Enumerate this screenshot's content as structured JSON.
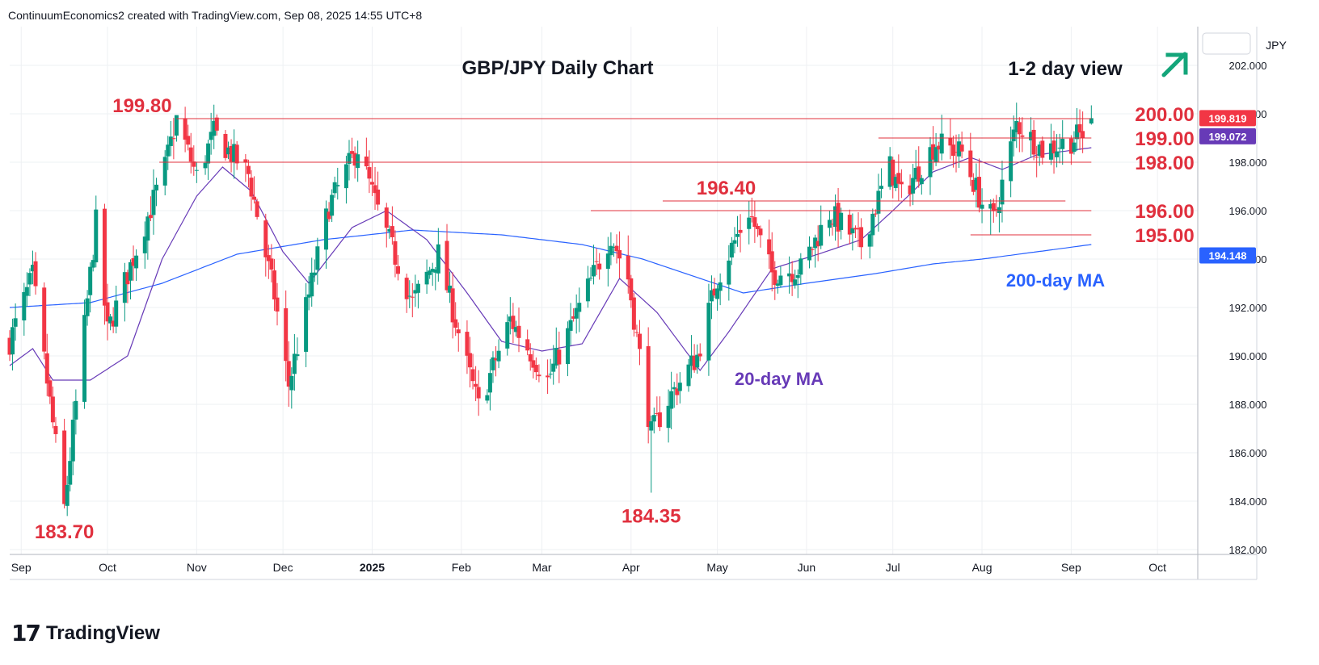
{
  "header": {
    "caption": "ContinuumEconomics2 created with TradingView.com, Sep 08, 2025 14:55 UTC+8"
  },
  "footer": {
    "brand": "TradingView"
  },
  "colors": {
    "up": "#089981",
    "down": "#f23645",
    "ma20": "#673ab7",
    "ma200": "#2962ff",
    "level": "#e0303e",
    "arrow": "#13a57a",
    "grid": "#eef0f3",
    "axis_text": "#131722"
  },
  "chart_data": {
    "type": "candlestick",
    "title": "GBP/JPY Daily Chart",
    "view_label": "1-2 day view",
    "view_direction": "up",
    "currency": "JPY",
    "y_range": [
      181.8,
      203.6
    ],
    "y_ticks": [
      182.0,
      184.0,
      186.0,
      188.0,
      190.0,
      192.0,
      194.0,
      196.0,
      198.0,
      200.0,
      202.0
    ],
    "y_tick_labels": [
      "182.000",
      "184.000",
      "186.000",
      "188.000",
      "190.000",
      "192.000",
      "194.000",
      "196.000",
      "198.000",
      "200.000",
      "202.000"
    ],
    "x_range": [
      "2024-08-28",
      "2025-10-15"
    ],
    "x_ticks": [
      {
        "date": "2024-09-01",
        "label": "Sep"
      },
      {
        "date": "2024-10-01",
        "label": "Oct"
      },
      {
        "date": "2024-11-01",
        "label": "Nov"
      },
      {
        "date": "2024-12-01",
        "label": "Dec"
      },
      {
        "date": "2025-01-01",
        "label": "2025"
      },
      {
        "date": "2025-02-01",
        "label": "Feb"
      },
      {
        "date": "2025-03-01",
        "label": "Mar"
      },
      {
        "date": "2025-04-01",
        "label": "Apr"
      },
      {
        "date": "2025-05-01",
        "label": "May"
      },
      {
        "date": "2025-06-01",
        "label": "Jun"
      },
      {
        "date": "2025-07-01",
        "label": "Jul"
      },
      {
        "date": "2025-08-01",
        "label": "Aug"
      },
      {
        "date": "2025-09-01",
        "label": "Sep"
      },
      {
        "date": "2025-10-01",
        "label": "Oct"
      }
    ],
    "price_anchors": [
      [
        "2024-08-28",
        190.6
      ],
      [
        "2024-09-05",
        193.3
      ],
      [
        "2024-09-16",
        183.7
      ],
      [
        "2024-09-27",
        195.5
      ],
      [
        "2024-10-01",
        191.0
      ],
      [
        "2024-10-21",
        197.8
      ],
      [
        "2024-10-25",
        199.8
      ],
      [
        "2024-11-01",
        197.4
      ],
      [
        "2024-11-07",
        199.2
      ],
      [
        "2024-11-19",
        197.5
      ],
      [
        "2024-11-28",
        192.5
      ],
      [
        "2024-12-03",
        188.8
      ],
      [
        "2024-12-17",
        196.2
      ],
      [
        "2024-12-27",
        198.6
      ],
      [
        "2025-01-03",
        196.0
      ],
      [
        "2025-01-15",
        192.2
      ],
      [
        "2025-01-24",
        194.2
      ],
      [
        "2025-02-03",
        189.6
      ],
      [
        "2025-02-07",
        187.9
      ],
      [
        "2025-02-18",
        191.5
      ],
      [
        "2025-03-03",
        189.0
      ],
      [
        "2025-03-10",
        190.9
      ],
      [
        "2025-03-25",
        195.0
      ],
      [
        "2025-03-31",
        193.2
      ],
      [
        "2025-04-08",
        186.8
      ],
      [
        "2025-04-15",
        188.4
      ],
      [
        "2025-04-24",
        190.0
      ],
      [
        "2025-05-01",
        193.2
      ],
      [
        "2025-05-12",
        196.0
      ],
      [
        "2025-05-20",
        193.4
      ],
      [
        "2025-05-30",
        193.6
      ],
      [
        "2025-06-09",
        195.9
      ],
      [
        "2025-06-20",
        194.6
      ],
      [
        "2025-06-30",
        197.8
      ],
      [
        "2025-07-04",
        196.6
      ],
      [
        "2025-07-16",
        198.8
      ],
      [
        "2025-07-25",
        198.4
      ],
      [
        "2025-08-01",
        196.3
      ],
      [
        "2025-08-05",
        195.6
      ],
      [
        "2025-08-13",
        199.6
      ],
      [
        "2025-08-22",
        198.5
      ],
      [
        "2025-09-01",
        198.9
      ],
      [
        "2025-09-05",
        199.2
      ],
      [
        "2025-09-08",
        199.82
      ]
    ],
    "annotated_candles": [
      {
        "date": "2024-09-16",
        "low": 183.7
      },
      {
        "date": "2024-10-25",
        "high": 199.8
      },
      {
        "date": "2025-04-08",
        "low": 184.35
      },
      {
        "date": "2025-05-12",
        "high": 196.4
      },
      {
        "date": "2025-08-04",
        "low": 195.0
      }
    ],
    "ma20_anchors": [
      [
        "2024-08-28",
        189.6
      ],
      [
        "2024-09-05",
        190.3
      ],
      [
        "2024-09-12",
        189.0
      ],
      [
        "2024-09-25",
        189.0
      ],
      [
        "2024-10-08",
        190.0
      ],
      [
        "2024-10-20",
        194.0
      ],
      [
        "2024-11-01",
        196.6
      ],
      [
        "2024-11-10",
        197.8
      ],
      [
        "2024-11-20",
        196.8
      ],
      [
        "2024-12-01",
        194.3
      ],
      [
        "2024-12-10",
        193.0
      ],
      [
        "2024-12-25",
        195.3
      ],
      [
        "2025-01-06",
        196.0
      ],
      [
        "2025-01-20",
        194.8
      ],
      [
        "2025-02-03",
        192.6
      ],
      [
        "2025-02-15",
        190.6
      ],
      [
        "2025-03-01",
        190.2
      ],
      [
        "2025-03-15",
        190.5
      ],
      [
        "2025-03-28",
        193.2
      ],
      [
        "2025-04-10",
        191.8
      ],
      [
        "2025-04-25",
        189.4
      ],
      [
        "2025-05-05",
        191.0
      ],
      [
        "2025-05-20",
        193.6
      ],
      [
        "2025-06-05",
        194.2
      ],
      [
        "2025-06-20",
        194.8
      ],
      [
        "2025-07-01",
        196.0
      ],
      [
        "2025-07-15",
        197.6
      ],
      [
        "2025-07-28",
        198.2
      ],
      [
        "2025-08-08",
        197.7
      ],
      [
        "2025-08-20",
        198.3
      ],
      [
        "2025-09-08",
        198.6
      ]
    ],
    "ma200_anchors": [
      [
        "2024-08-28",
        192.0
      ],
      [
        "2024-09-25",
        192.2
      ],
      [
        "2024-10-20",
        193.0
      ],
      [
        "2024-11-15",
        194.2
      ],
      [
        "2024-12-15",
        194.8
      ],
      [
        "2025-01-15",
        195.2
      ],
      [
        "2025-02-15",
        195.0
      ],
      [
        "2025-03-15",
        194.6
      ],
      [
        "2025-04-05",
        194.0
      ],
      [
        "2025-04-25",
        193.2
      ],
      [
        "2025-05-10",
        192.6
      ],
      [
        "2025-06-01",
        193.0
      ],
      [
        "2025-06-25",
        193.4
      ],
      [
        "2025-07-15",
        193.8
      ],
      [
        "2025-08-01",
        194.0
      ],
      [
        "2025-09-08",
        194.6
      ]
    ],
    "series": [
      {
        "name": "20-day MA",
        "label": "20-day MA"
      },
      {
        "name": "200-day MA",
        "label": "200-day MA"
      }
    ],
    "levels": [
      {
        "price": 199.8,
        "label": "199.80",
        "from": "2024-10-25",
        "to": "2025-09-08",
        "label_side": "left"
      },
      {
        "price": 200.0,
        "label": "200.00",
        "label_side": "right"
      },
      {
        "price": 199.0,
        "label": "199.00",
        "from": "2025-06-26",
        "to": "2025-09-08",
        "label_side": "right"
      },
      {
        "price": 198.0,
        "label": "198.00",
        "from": "2024-10-19",
        "to": "2025-09-08",
        "label_side": "right"
      },
      {
        "price": 196.4,
        "label": "196.40",
        "from": "2025-04-12",
        "to": "2025-08-30",
        "label_side": "left"
      },
      {
        "price": 196.0,
        "label": "196.00",
        "from": "2025-03-18",
        "to": "2025-09-08",
        "label_side": "right"
      },
      {
        "price": 195.0,
        "label": "195.00",
        "from": "2025-07-28",
        "to": "2025-09-08",
        "label_side": "right"
      }
    ],
    "extremes": [
      {
        "price": 183.7,
        "label": "183.70",
        "date": "2024-09-16"
      },
      {
        "price": 184.35,
        "label": "184.35",
        "date": "2025-04-08"
      }
    ],
    "price_badges": [
      {
        "value": "199.819",
        "price": 199.819,
        "color": "#f23645"
      },
      {
        "value": "199.072",
        "price": 199.072,
        "color": "#673ab7"
      },
      {
        "value": "194.148",
        "price": 194.148,
        "color": "#2962ff"
      }
    ]
  }
}
